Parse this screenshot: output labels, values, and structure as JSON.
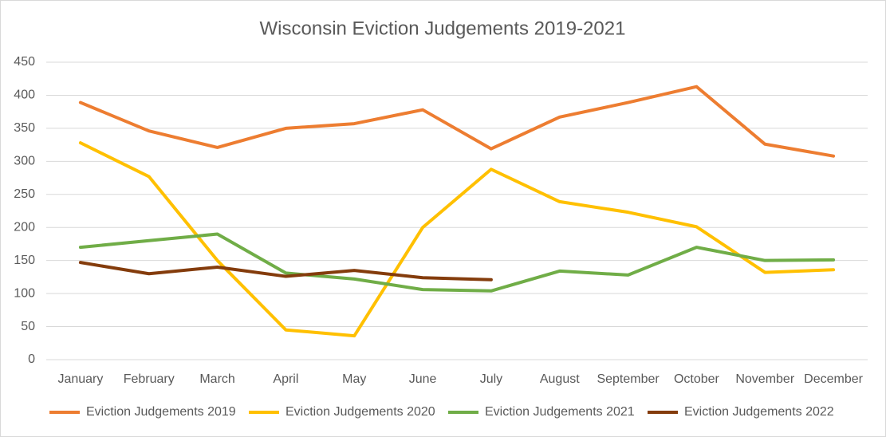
{
  "chart_data": {
    "type": "line",
    "title": "Wisconsin Eviction Judgements 2019-2021",
    "categories": [
      "January",
      "February",
      "March",
      "April",
      "May",
      "June",
      "July",
      "August",
      "September",
      "October",
      "November",
      "December"
    ],
    "series": [
      {
        "name": "Eviction Judgements 2019",
        "color": "#ed7d31",
        "values": [
          389,
          346,
          321,
          350,
          357,
          378,
          319,
          367,
          389,
          413,
          326,
          308
        ]
      },
      {
        "name": "Eviction Judgements 2020",
        "color": "#ffc000",
        "values": [
          328,
          277,
          150,
          45,
          36,
          200,
          288,
          239,
          223,
          201,
          132,
          136
        ]
      },
      {
        "name": "Eviction Judgements 2021",
        "color": "#70ad47",
        "values": [
          170,
          180,
          190,
          131,
          122,
          106,
          104,
          134,
          128,
          170,
          150,
          151
        ]
      },
      {
        "name": "Eviction Judgements 2022",
        "color": "#843c0c",
        "values": [
          147,
          130,
          140,
          126,
          135,
          124,
          121,
          null,
          null,
          null,
          null,
          null
        ]
      }
    ],
    "ylim": [
      0,
      450
    ],
    "yticks": [
      0,
      50,
      100,
      150,
      200,
      250,
      300,
      350,
      400,
      450
    ],
    "grid": true,
    "legend": "bottom"
  }
}
